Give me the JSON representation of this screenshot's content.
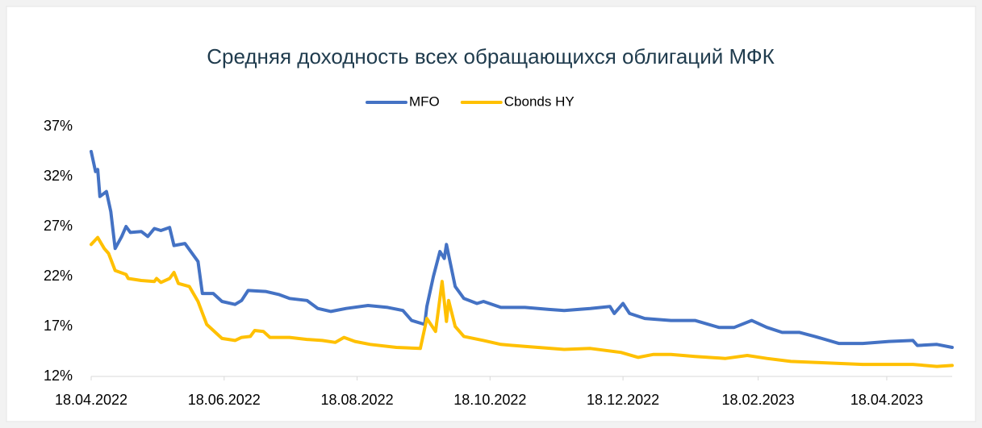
{
  "chart_data": {
    "type": "line",
    "title": "Средняя доходность всех обращающихся облигаций МФК",
    "xlim": [
      "2022-04-18",
      "2023-05-18"
    ],
    "xticks": [
      {
        "value": "2022-04-18",
        "label": "18.04.2022"
      },
      {
        "value": "2022-06-18",
        "label": "18.06.2022"
      },
      {
        "value": "2022-08-18",
        "label": "18.08.2022"
      },
      {
        "value": "2022-10-18",
        "label": "18.10.2022"
      },
      {
        "value": "2022-12-18",
        "label": "18.12.2022"
      },
      {
        "value": "2023-02-18",
        "label": "18.02.2023"
      },
      {
        "value": "2023-04-18",
        "label": "18.04.2023"
      }
    ],
    "ylim": [
      12,
      37
    ],
    "yticks": [
      {
        "value": 12,
        "label": "12%"
      },
      {
        "value": 17,
        "label": "17%"
      },
      {
        "value": 22,
        "label": "22%"
      },
      {
        "value": 27,
        "label": "27%"
      },
      {
        "value": 32,
        "label": "32%"
      },
      {
        "value": 37,
        "label": "37%"
      }
    ],
    "grid": false,
    "legend": "top",
    "series": [
      {
        "name": "MFO",
        "color": "#4472c4",
        "x": [
          "2022-04-18",
          "2022-04-20",
          "2022-04-21",
          "2022-04-22",
          "2022-04-25",
          "2022-04-27",
          "2022-04-29",
          "2022-05-02",
          "2022-05-04",
          "2022-05-06",
          "2022-05-11",
          "2022-05-14",
          "2022-05-17",
          "2022-05-20",
          "2022-05-24",
          "2022-05-26",
          "2022-05-31",
          "2022-06-06",
          "2022-06-08",
          "2022-06-13",
          "2022-06-17",
          "2022-06-23",
          "2022-06-26",
          "2022-06-29",
          "2022-07-07",
          "2022-07-13",
          "2022-07-18",
          "2022-07-26",
          "2022-07-31",
          "2022-08-06",
          "2022-08-13",
          "2022-08-23",
          "2022-09-01",
          "2022-09-08",
          "2022-09-12",
          "2022-09-18",
          "2022-09-19",
          "2022-09-22",
          "2022-09-25",
          "2022-09-27",
          "2022-09-28",
          "2022-10-02",
          "2022-10-06",
          "2022-10-12",
          "2022-10-15",
          "2022-10-23",
          "2022-11-03",
          "2022-11-14",
          "2022-11-21",
          "2022-12-03",
          "2022-12-12",
          "2022-12-14",
          "2022-12-18",
          "2022-12-21",
          "2022-12-28",
          "2023-01-09",
          "2023-01-20",
          "2023-01-31",
          "2023-02-07",
          "2023-02-15",
          "2023-02-22",
          "2023-03-01",
          "2023-03-09",
          "2023-03-16",
          "2023-03-27",
          "2023-04-07",
          "2023-04-19",
          "2023-04-30",
          "2023-05-02",
          "2023-05-11",
          "2023-05-18"
        ],
        "values": [
          34.5,
          32.5,
          32.7,
          30.0,
          30.5,
          28.5,
          24.8,
          26.0,
          27.0,
          26.4,
          26.5,
          26.0,
          26.8,
          26.6,
          26.9,
          25.1,
          25.3,
          23.5,
          20.3,
          20.3,
          19.5,
          19.2,
          19.6,
          20.6,
          20.5,
          20.2,
          19.8,
          19.6,
          18.8,
          18.5,
          18.8,
          19.1,
          18.9,
          18.6,
          17.6,
          17.2,
          19.0,
          22.0,
          24.5,
          23.8,
          25.2,
          21.0,
          19.8,
          19.3,
          19.5,
          18.9,
          18.9,
          18.7,
          18.6,
          18.8,
          19.0,
          18.3,
          19.3,
          18.3,
          17.8,
          17.6,
          17.6,
          16.9,
          16.9,
          17.6,
          16.9,
          16.4,
          16.4,
          16.0,
          15.3,
          15.3,
          15.5,
          15.6,
          15.1,
          15.2,
          14.9
        ]
      },
      {
        "name": "Cbonds HY",
        "color": "#ffc000",
        "x": [
          "2022-04-18",
          "2022-04-21",
          "2022-04-24",
          "2022-04-26",
          "2022-04-29",
          "2022-05-04",
          "2022-05-05",
          "2022-05-11",
          "2022-05-17",
          "2022-05-18",
          "2022-05-20",
          "2022-05-24",
          "2022-05-26",
          "2022-05-28",
          "2022-06-02",
          "2022-06-06",
          "2022-06-10",
          "2022-06-17",
          "2022-06-23",
          "2022-06-26",
          "2022-06-30",
          "2022-07-02",
          "2022-07-06",
          "2022-07-09",
          "2022-07-18",
          "2022-07-26",
          "2022-08-02",
          "2022-08-08",
          "2022-08-12",
          "2022-08-17",
          "2022-08-24",
          "2022-09-05",
          "2022-09-16",
          "2022-09-19",
          "2022-09-23",
          "2022-09-26",
          "2022-09-28",
          "2022-09-29",
          "2022-10-02",
          "2022-10-06",
          "2022-10-15",
          "2022-10-23",
          "2022-11-03",
          "2022-11-21",
          "2022-12-03",
          "2022-12-17",
          "2022-12-25",
          "2023-01-01",
          "2023-01-09",
          "2023-01-20",
          "2023-02-03",
          "2023-02-13",
          "2023-02-22",
          "2023-03-05",
          "2023-03-16",
          "2023-03-27",
          "2023-04-07",
          "2023-04-19",
          "2023-04-30",
          "2023-05-11",
          "2023-05-18"
        ],
        "values": [
          25.2,
          25.9,
          24.8,
          24.3,
          22.6,
          22.2,
          21.8,
          21.6,
          21.5,
          21.8,
          21.4,
          21.8,
          22.4,
          21.3,
          21.0,
          19.5,
          17.2,
          15.8,
          15.6,
          15.9,
          16.0,
          16.6,
          16.5,
          15.9,
          15.9,
          15.7,
          15.6,
          15.4,
          15.9,
          15.5,
          15.2,
          14.9,
          14.8,
          17.8,
          16.5,
          21.5,
          17.5,
          19.6,
          17.0,
          16.0,
          15.6,
          15.2,
          15.0,
          14.7,
          14.8,
          14.4,
          13.9,
          14.2,
          14.2,
          14.0,
          13.8,
          14.1,
          13.8,
          13.5,
          13.4,
          13.3,
          13.2,
          13.2,
          13.2,
          13.0,
          13.1
        ]
      }
    ]
  }
}
